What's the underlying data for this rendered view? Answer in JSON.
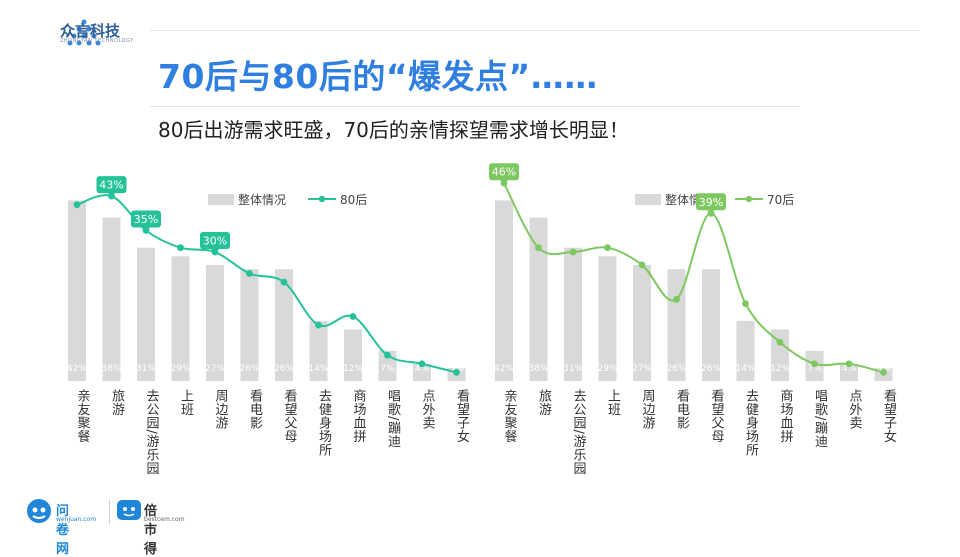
{
  "header": {
    "brand_name": "众言科技",
    "brand_sub": "ZHONGYAN TECHNOLOGY",
    "title": "70后与80后的“爆发点”……",
    "subtitle": "80后出游需求旺盛，70后的亲情探望需求增长明显！"
  },
  "footer": {
    "brand1": "问卷网",
    "brand1_sub": "wenjuan.com",
    "brand2": "倍市得",
    "brand2_sub": "bestcem.com"
  },
  "colors": {
    "bar": "#d9d9d9",
    "line80": "#25c29a",
    "line70": "#7ec861",
    "title": "#2f7fe0"
  },
  "chart_data": [
    {
      "type": "bar",
      "categories": [
        "亲友聚餐",
        "旅游",
        "去公园/游乐园",
        "上班",
        "周边游",
        "看电影",
        "看望父母",
        "去健身场所",
        "商场血拼",
        "唱歌/蹦迪",
        "点外卖",
        "看望子女"
      ],
      "series": [
        {
          "name": "整体情况",
          "type": "bar",
          "values": [
            42,
            38,
            31,
            29,
            27,
            26,
            26,
            14,
            12,
            7,
            4,
            3
          ],
          "labels": [
            "42%",
            "38%",
            "31%",
            "29%",
            "27%",
            "26%",
            "26%",
            "14%",
            "12%",
            "7%",
            "4%",
            "3%"
          ]
        },
        {
          "name": "80后",
          "type": "line",
          "values": [
            41,
            43,
            35,
            31,
            30,
            25,
            23,
            13,
            15,
            6,
            4,
            2
          ],
          "labels": [
            "",
            "43%",
            "35%",
            "",
            "30%",
            "",
            "",
            "",
            "",
            "",
            "",
            ""
          ]
        }
      ],
      "legend": [
        "整体情况",
        "80后"
      ],
      "ylim": [
        0,
        50
      ]
    },
    {
      "type": "bar",
      "categories": [
        "亲友聚餐",
        "旅游",
        "去公园/游乐园",
        "上班",
        "周边游",
        "看电影",
        "看望父母",
        "去健身场所",
        "商场血拼",
        "唱歌/蹦迪",
        "点外卖",
        "看望子女"
      ],
      "series": [
        {
          "name": "整体情况",
          "type": "bar",
          "values": [
            42,
            38,
            31,
            29,
            27,
            26,
            26,
            14,
            12,
            7,
            4,
            3
          ],
          "labels": [
            "42%",
            "38%",
            "31%",
            "29%",
            "27%",
            "26%",
            "26%",
            "14%",
            "12%",
            "7%",
            "4%",
            "3%"
          ]
        },
        {
          "name": "70后",
          "type": "line",
          "values": [
            46,
            31,
            30,
            31,
            27,
            19,
            39,
            18,
            9,
            4,
            4,
            2
          ],
          "labels": [
            "46%",
            "",
            "",
            "",
            "",
            "",
            "39%",
            "",
            "",
            "",
            "",
            ""
          ]
        }
      ],
      "legend": [
        "整体情况",
        "70后"
      ],
      "ylim": [
        0,
        50
      ]
    }
  ]
}
